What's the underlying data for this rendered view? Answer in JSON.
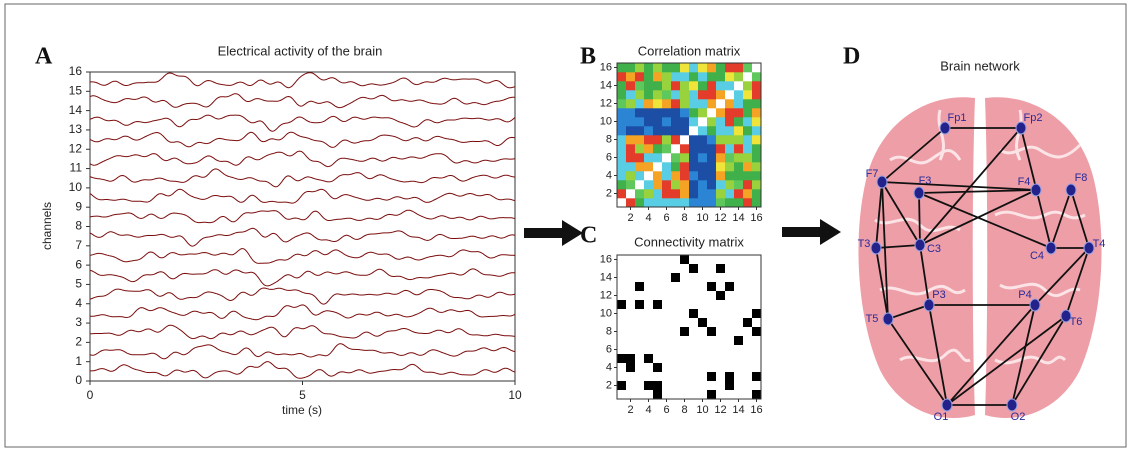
{
  "panels": {
    "a": {
      "letter": "A",
      "title": "Electrical activity of the brain",
      "y_label": "channels",
      "x_label": "time (s)",
      "xlim": [
        0,
        10
      ],
      "xticks": [
        0,
        5,
        10
      ],
      "ylim": [
        0,
        16
      ],
      "yticks": [
        0,
        1,
        2,
        3,
        4,
        5,
        6,
        7,
        8,
        9,
        10,
        11,
        12,
        13,
        14,
        15,
        16
      ]
    },
    "b": {
      "letter": "B",
      "title": "Correlation matrix",
      "lim": [
        0.5,
        16.5
      ],
      "xticks": [
        2,
        4,
        6,
        8,
        10,
        12,
        14,
        16
      ],
      "yticks": [
        2,
        4,
        6,
        8,
        10,
        12,
        14,
        16
      ]
    },
    "c": {
      "letter": "C",
      "title": "Connectivity matrix",
      "lim": [
        0.5,
        16.5
      ],
      "xticks": [
        2,
        4,
        6,
        8,
        10,
        12,
        14,
        16
      ],
      "yticks": [
        2,
        4,
        6,
        8,
        10,
        12,
        14,
        16
      ],
      "cells": [
        [
          3,
          13
        ],
        [
          7,
          14
        ],
        [
          8,
          16
        ],
        [
          9,
          15
        ],
        [
          12,
          15
        ],
        [
          11,
          13
        ],
        [
          13,
          13
        ],
        [
          12,
          12
        ],
        [
          1,
          11
        ],
        [
          3,
          11
        ],
        [
          5,
          11
        ],
        [
          9,
          10
        ],
        [
          10,
          9
        ],
        [
          16,
          10
        ],
        [
          15,
          9
        ],
        [
          16,
          8
        ],
        [
          8,
          8
        ],
        [
          11,
          8
        ],
        [
          14,
          7
        ],
        [
          1,
          5
        ],
        [
          2,
          5
        ],
        [
          2,
          4
        ],
        [
          4,
          5
        ],
        [
          5,
          4
        ],
        [
          1,
          2
        ],
        [
          4,
          2
        ],
        [
          5,
          2
        ],
        [
          5,
          1
        ],
        [
          11,
          1
        ],
        [
          11,
          3
        ],
        [
          13,
          3
        ],
        [
          13,
          2
        ],
        [
          16,
          3
        ],
        [
          16,
          1
        ]
      ]
    },
    "d": {
      "letter": "D",
      "title": "Brain network",
      "nodes": [
        "Fp1",
        "Fp2",
        "F7",
        "F3",
        "F4",
        "F8",
        "T3",
        "C3",
        "C4",
        "T4",
        "T5",
        "P3",
        "P4",
        "T6",
        "O1",
        "O2"
      ],
      "edges": [
        [
          0,
          1
        ],
        [
          0,
          2
        ],
        [
          1,
          7
        ],
        [
          1,
          8
        ],
        [
          2,
          6
        ],
        [
          2,
          7
        ],
        [
          2,
          10
        ],
        [
          2,
          4
        ],
        [
          3,
          7
        ],
        [
          3,
          8
        ],
        [
          4,
          7
        ],
        [
          5,
          8
        ],
        [
          5,
          9
        ],
        [
          8,
          9
        ],
        [
          6,
          7
        ],
        [
          6,
          10
        ],
        [
          7,
          11
        ],
        [
          10,
          11
        ],
        [
          11,
          14
        ],
        [
          11,
          12
        ],
        [
          12,
          14
        ],
        [
          12,
          15
        ],
        [
          12,
          9
        ],
        [
          9,
          13
        ],
        [
          13,
          15
        ],
        [
          10,
          14
        ],
        [
          14,
          15
        ],
        [
          13,
          14
        ],
        [
          3,
          4
        ]
      ]
    }
  }
}
